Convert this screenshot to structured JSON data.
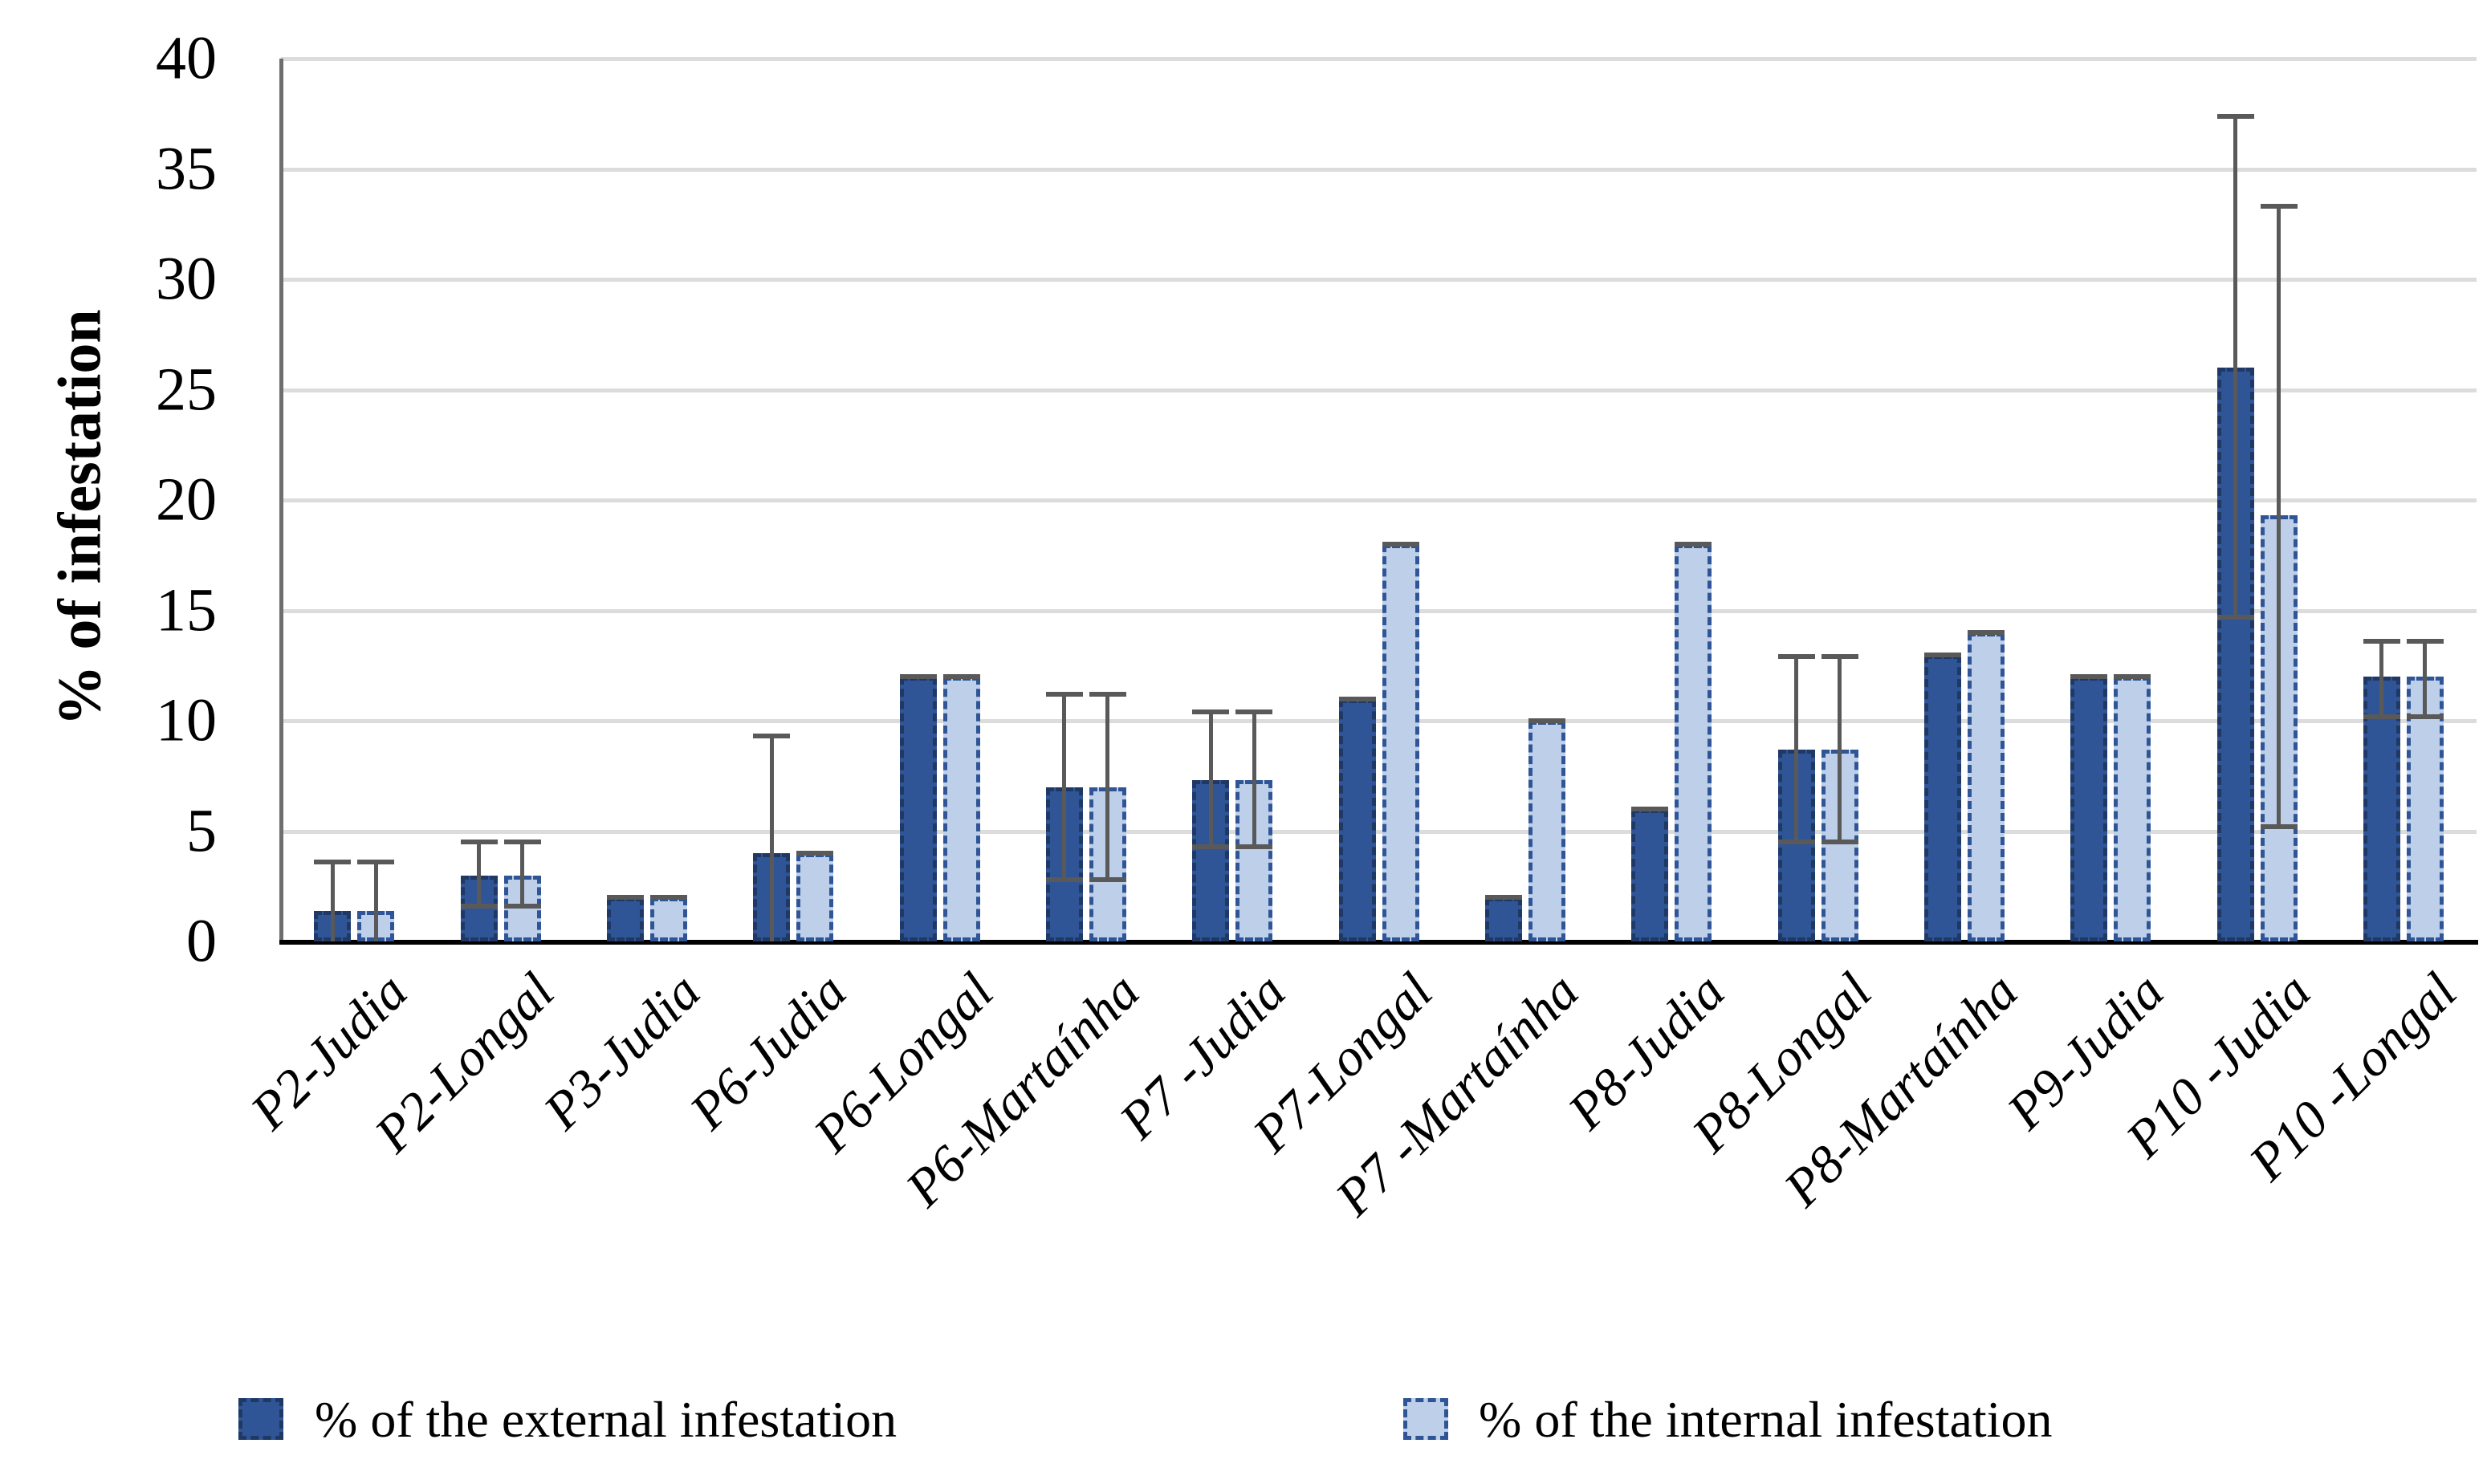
{
  "chart_data": {
    "type": "bar",
    "title": "",
    "xlabel": "",
    "ylabel": "% of infestation",
    "ylim": [
      0,
      40
    ],
    "ytick_step": 5,
    "grid": "horizontal",
    "legend_position": "bottom",
    "categories": [
      "P2-Judia",
      "P2-Longal",
      "P3-Judia",
      "P6-Judia",
      "P6-Longal",
      "P6-Martaínha",
      "P7 -Judia",
      "P7-Longal",
      "P7 -Martaínha",
      "P8-Judia",
      "P8-Longal",
      "P8-Martaínha",
      "P9-Judia",
      "P10 -Judia",
      "P10 -Longal"
    ],
    "series": [
      {
        "name": "% of the external infestation",
        "fill": "#2F5597",
        "border": "#1F3864",
        "values": [
          1.4,
          3,
          2,
          4,
          12,
          7,
          7.3,
          11,
          2,
          6,
          8.7,
          13,
          12,
          26,
          12
        ],
        "err_lo": [
          null,
          1.6,
          2,
          null,
          12,
          2.8,
          4.3,
          11,
          2,
          6,
          4.5,
          13,
          12,
          14.7,
          10.2
        ],
        "err_hi": [
          3.6,
          4.5,
          2,
          9.3,
          12,
          11.2,
          10.4,
          11,
          2,
          6,
          12.9,
          13,
          12,
          37.4,
          13.6
        ]
      },
      {
        "name": "% of the internal infestation",
        "fill": "#BDCFE9",
        "border": "#2F5597",
        "values": [
          1.4,
          3,
          2,
          4,
          12,
          7,
          7.3,
          18,
          10,
          18,
          8.7,
          14,
          12,
          19.3,
          12
        ],
        "err_lo": [
          null,
          1.6,
          2,
          4,
          12,
          2.8,
          4.3,
          18,
          10,
          18,
          4.5,
          14,
          12,
          5.2,
          10.2
        ],
        "err_hi": [
          3.6,
          4.5,
          2,
          4,
          12,
          11.2,
          10.4,
          18,
          10,
          18,
          12.9,
          14,
          12,
          33.3,
          13.6
        ]
      }
    ],
    "colors": {
      "gridline": "#DCDCDC",
      "axis_left": "#6E6E6E",
      "axis_bottom": "#000000",
      "error_bar": "#595959",
      "background": "#FFFFFF"
    },
    "yticks": [
      0,
      5,
      10,
      15,
      20,
      25,
      30,
      35,
      40
    ]
  },
  "legend": {
    "external_label": "% of the external infestation",
    "internal_label": "% of the internal infestation"
  }
}
